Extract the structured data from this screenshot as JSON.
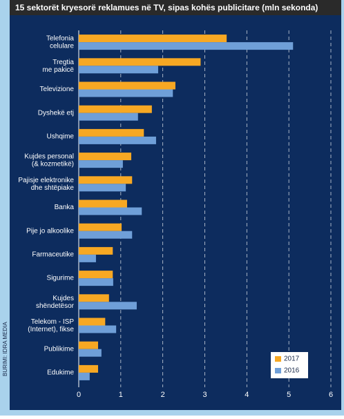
{
  "chart_data": {
    "type": "bar",
    "orientation": "horizontal",
    "title": "15 sektorët kryesorë reklamues në TV, sipas kohës publicitare (mln sekonda)",
    "source": "BURIMI: IDRA MEDIA",
    "categories": [
      "Telefonia\ncelulare",
      "Tregtia\nme pakicë",
      "Televizione",
      "Dyshekë etj",
      "Ushqime",
      "Kujdes personal\n(& kozmetikë)",
      "Pajisje elektronike\ndhe shtëpiake",
      "Banka",
      "Pije jo alkoolike",
      "Farmaceutike",
      "Sigurime",
      "Kujdes\nshëndetësor",
      "Telekom - ISP\n(Internet), fikse",
      "Publikime",
      "Edukime"
    ],
    "series": [
      {
        "name": "2017",
        "color": "#f7a823",
        "values": [
          3.52,
          2.9,
          2.3,
          1.74,
          1.55,
          1.25,
          1.27,
          1.15,
          1.02,
          0.81,
          0.81,
          0.72,
          0.63,
          0.46,
          0.46
        ]
      },
      {
        "name": "2016",
        "color": "#6f9fd8",
        "values": [
          5.1,
          1.89,
          2.24,
          1.41,
          1.84,
          1.05,
          1.12,
          1.5,
          1.27,
          0.41,
          0.82,
          1.38,
          0.89,
          0.54,
          0.26
        ]
      }
    ],
    "xlim": [
      0,
      6
    ],
    "xticks": [
      0,
      1,
      2,
      3,
      4,
      5,
      6
    ],
    "grid": true,
    "legend": "lower right"
  }
}
